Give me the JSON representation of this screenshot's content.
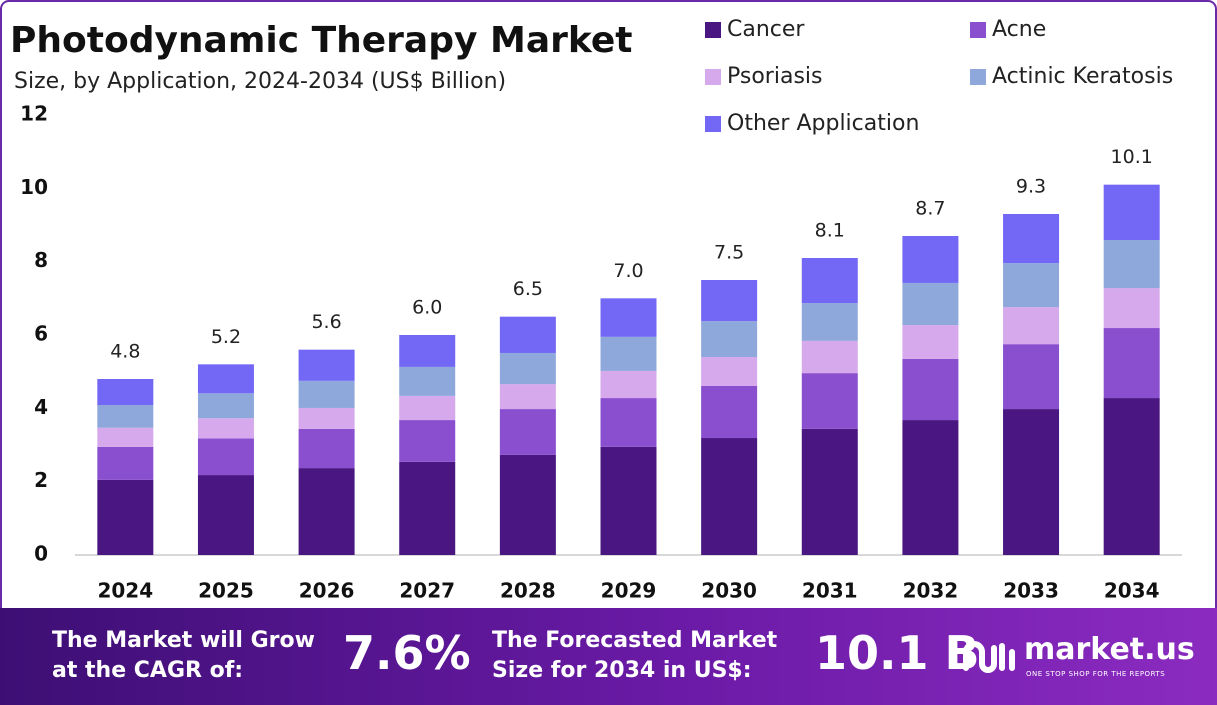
{
  "chart_data": {
    "type": "stacked_bar",
    "title": "Photodynamic Therapy Market",
    "subtitle": "Size, by Application, 2024-2034 (US$ Billion)",
    "categories": [
      "2024",
      "2025",
      "2026",
      "2027",
      "2028",
      "2029",
      "2030",
      "2031",
      "2032",
      "2033",
      "2034"
    ],
    "series": [
      {
        "name": "Cancer",
        "color": "#4a1782",
        "values": [
          2.05,
          2.18,
          2.37,
          2.54,
          2.73,
          2.95,
          3.19,
          3.44,
          3.68,
          3.98,
          4.28
        ]
      },
      {
        "name": "Acne",
        "color": "#8a4fcf",
        "values": [
          0.9,
          1.0,
          1.07,
          1.14,
          1.25,
          1.33,
          1.42,
          1.52,
          1.67,
          1.77,
          1.91
        ]
      },
      {
        "name": "Psoriasis",
        "color": "#d6a8ec",
        "values": [
          0.52,
          0.55,
          0.57,
          0.66,
          0.68,
          0.74,
          0.79,
          0.88,
          0.92,
          1.01,
          1.09
        ]
      },
      {
        "name": "Actinic Keratosis",
        "color": "#8ea8db",
        "values": [
          0.62,
          0.68,
          0.74,
          0.79,
          0.85,
          0.93,
          0.98,
          1.03,
          1.15,
          1.2,
          1.31
        ]
      },
      {
        "name": "Other Application",
        "color": "#7367f5",
        "values": [
          0.71,
          0.79,
          0.85,
          0.87,
          0.99,
          1.05,
          1.12,
          1.23,
          1.28,
          1.34,
          1.51
        ]
      }
    ],
    "totals": [
      4.8,
      5.2,
      5.6,
      {
        "value": 6,
        "label": "6.0"
      },
      6.5,
      {
        "value": 7,
        "label": "7.0"
      },
      7.5,
      8.1,
      8.7,
      9.3,
      10.1
    ],
    "ylim": [
      0,
      12
    ],
    "yticks": [
      0,
      2,
      4,
      6,
      8,
      10,
      12
    ],
    "grid": false
  },
  "banner": {
    "cagr_text": [
      "The Market will Grow",
      "at the CAGR of:"
    ],
    "cagr_value": "7.6%",
    "forecast_text": [
      "The Forecasted Market",
      "Size for 2034 in US$:"
    ],
    "forecast_value": "10.1 B",
    "brand": "market.us",
    "tagline": "ONE STOP SHOP FOR THE REPORTS"
  }
}
